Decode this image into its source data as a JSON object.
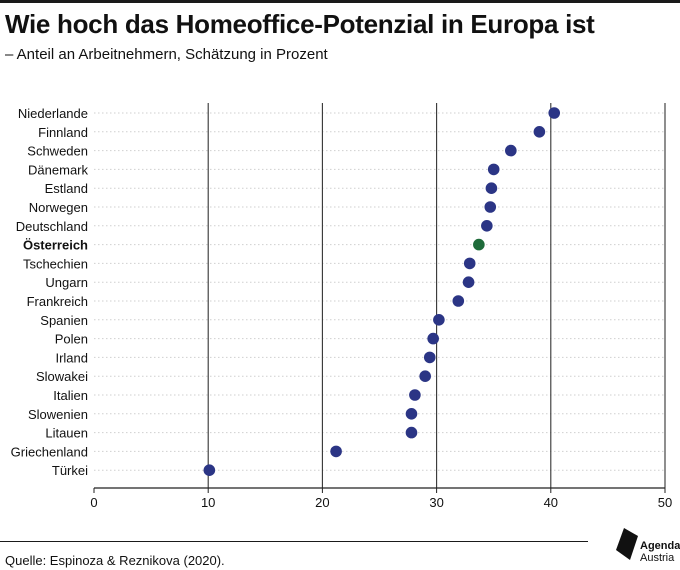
{
  "header": {
    "title": "Wie hoch das Homeoffice-Potenzial in Europa ist",
    "subtitle": "– Anteil an Arbeitnehmern, Schätzung in Prozent"
  },
  "footer": {
    "source": "Quelle: Espinoza & Reznikova (2020).",
    "logo_line1": "Agenda",
    "logo_line2": "Austria"
  },
  "colors": {
    "dot": "#2b3585",
    "highlight": "#1e6b3a",
    "grid_major": "#333333",
    "grid_row": "#cfcfcf"
  },
  "chart_data": {
    "type": "scatter",
    "orientation": "horizontal dot plot",
    "xlim": [
      0,
      50
    ],
    "xticks": [
      0,
      10,
      20,
      30,
      40,
      50
    ],
    "highlight": "Österreich",
    "categories": [
      "Niederlande",
      "Finnland",
      "Schweden",
      "Dänemark",
      "Estland",
      "Norwegen",
      "Deutschland",
      "Österreich",
      "Tschechien",
      "Ungarn",
      "Frankreich",
      "Spanien",
      "Polen",
      "Irland",
      "Slowakei",
      "Italien",
      "Slowenien",
      "Litauen",
      "Griechenland",
      "Türkei"
    ],
    "values": [
      40.3,
      39.0,
      36.5,
      35.0,
      34.8,
      34.7,
      34.4,
      33.7,
      32.9,
      32.8,
      31.9,
      30.2,
      29.7,
      29.4,
      29.0,
      28.1,
      27.8,
      27.8,
      21.2,
      10.1
    ]
  }
}
